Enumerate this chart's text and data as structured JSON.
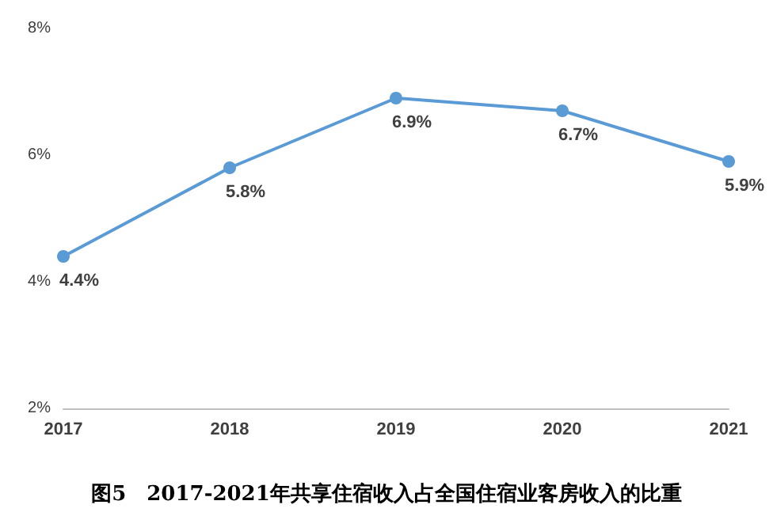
{
  "chart_data": {
    "type": "line",
    "title": "图5　2017-2021年共享住宿收入占全国住宿业客房收入的比重",
    "categories": [
      "2017",
      "2018",
      "2019",
      "2020",
      "2021"
    ],
    "series": [
      {
        "color": "#5b9bd5",
        "values": [
          4.4,
          5.8,
          6.9,
          6.7,
          5.9
        ],
        "value_labels": [
          "4.4%",
          "5.8%",
          "6.9%",
          "6.7%",
          "5.9%"
        ]
      }
    ],
    "ylim": [
      2,
      8
    ],
    "yticks": [
      {
        "value": 2,
        "label": "2%"
      },
      {
        "value": 4,
        "label": "4%"
      },
      {
        "value": 6,
        "label": "6%"
      },
      {
        "value": 8,
        "label": "8%"
      }
    ],
    "grid": false,
    "marker": "circle",
    "line_style": "solid"
  }
}
